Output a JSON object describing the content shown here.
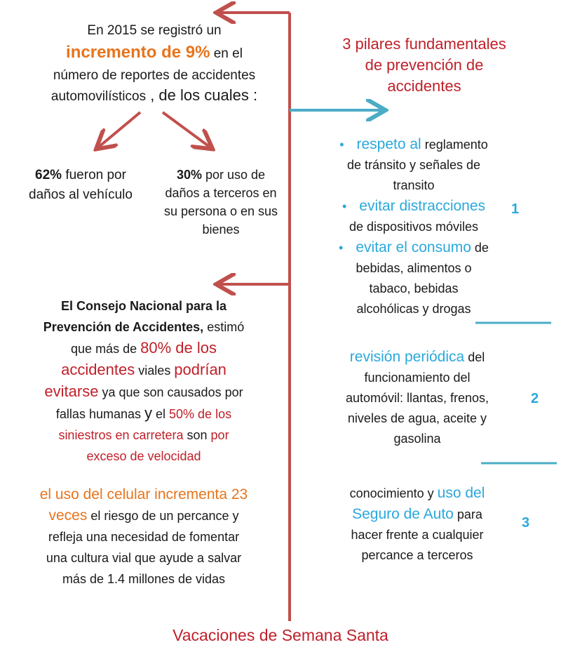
{
  "colors": {
    "spine": "#c0504d",
    "accent_blue": "#4bacc6",
    "orange": "#e8741c",
    "red": "#c0202a",
    "blue": "#2aa8dc"
  },
  "left": {
    "intro": {
      "l1": "En 2015 se registró un",
      "highlight": "incremento de 9%",
      "l2_rest": " en el",
      "l3": "número de reportes de accidentes",
      "l4a": "automovilísticos",
      "l4b": " , de los cuales :"
    },
    "stat_a": {
      "pct": "62%",
      "text1": " fueron por",
      "text2": "daños al vehículo"
    },
    "stat_b": {
      "pct": "30%",
      "text1": " por uso de",
      "text2": "daños a terceros en",
      "text3": "su persona o en sus",
      "text4": "bienes"
    },
    "consejo": {
      "l1": "El Consejo Nacional para la",
      "l2a": "Prevención de Accidentes,",
      "l2b": " estimó",
      "l3a": "que más de ",
      "l3b": "80% de los",
      "l4a": "accidentes",
      "l4b": " viales ",
      "l4c": "podrían",
      "l5a": "evitarse",
      "l5b": " ya que son causados por",
      "l6a": "fallas humanas ",
      "l6b": "y",
      "l6c": " el ",
      "l6d": "50% de los",
      "l7a": "siniestros en carretera",
      "l7b": " son ",
      "l7c": "por",
      "l8": "exceso de velocidad"
    },
    "celular": {
      "l1": "el uso del celular incrementa 23",
      "l2a": "veces",
      "l2b": " el riesgo de un percance y",
      "l3": "refleja una necesidad de fomentar",
      "l4": "una cultura vial que ayude a salvar",
      "l5": "más de 1.4 millones de vidas"
    }
  },
  "right": {
    "title": {
      "l1": "3 pilares fundamentales",
      "l2": "de prevención de",
      "l3": "accidentes"
    },
    "pillar1": {
      "number": "1",
      "b1a": "respeto al",
      "b1b": " reglamento",
      "b1c": "de tránsito y señales de",
      "b1d": "transito",
      "b2a": "evitar distracciones",
      "b2b": "de dispositivos móviles",
      "b3a": "evitar el consumo",
      "b3b": " de",
      "b3c": "bebidas, alimentos o",
      "b3d": "tabaco, bebidas",
      "b3e": "alcohólicas y drogas"
    },
    "pillar2": {
      "number": "2",
      "l1a": "revisión  periódica",
      "l1b": " del",
      "l2": "funcionamiento del",
      "l3": "automóvil: llantas, frenos,",
      "l4": "niveles de agua, aceite y",
      "l5": "gasolina"
    },
    "pillar3": {
      "number": "3",
      "l1a": "conocimiento y ",
      "l1b": "uso del",
      "l2a": "Seguro de Auto",
      "l2b": " para",
      "l3": "hacer frente a cualquier",
      "l4": "percance a terceros"
    }
  },
  "footer": "Vacaciones de Semana Santa"
}
